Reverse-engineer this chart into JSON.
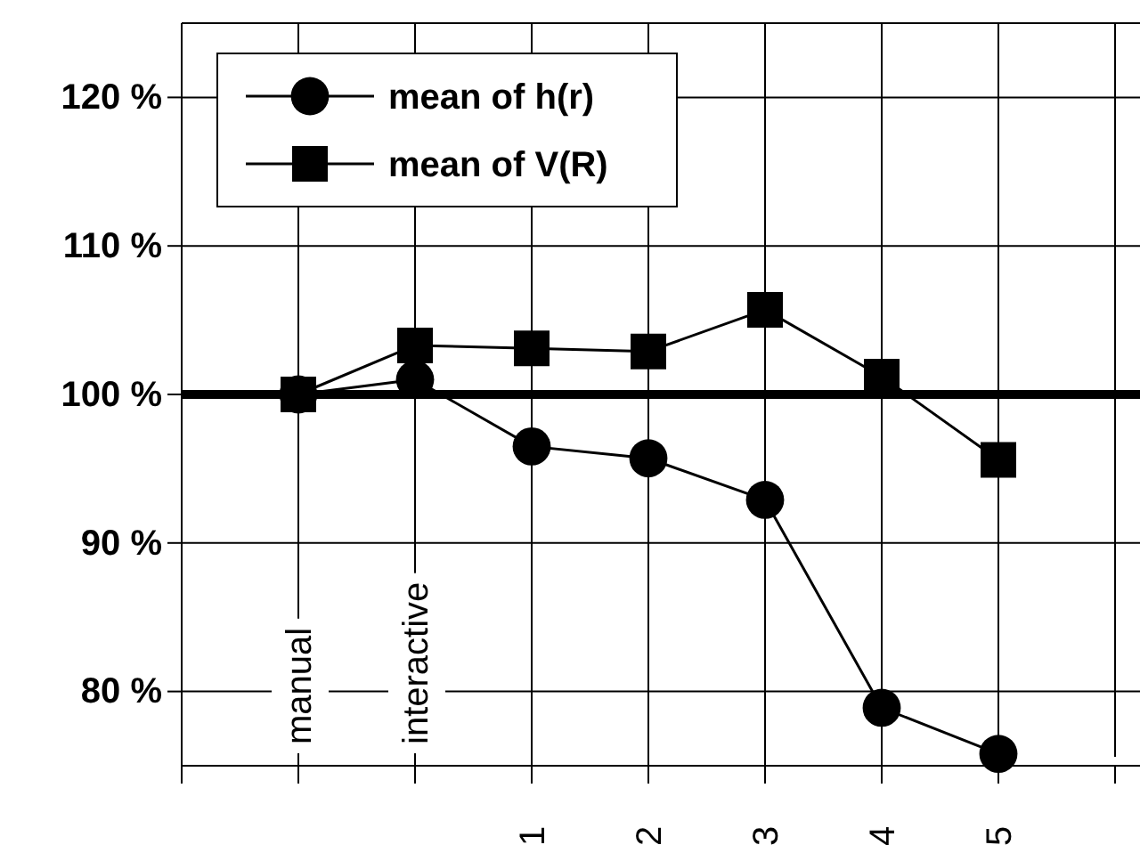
{
  "chart_data": {
    "type": "line",
    "categories": [
      "manual",
      "interactive",
      "1",
      "2",
      "3",
      "4",
      "5"
    ],
    "series": [
      {
        "name": "mean of h(r)",
        "color": "#000000",
        "marker": "circle",
        "values": [
          100,
          101,
          96.5,
          95.7,
          92.9,
          78.9,
          75.8
        ]
      },
      {
        "name": "mean of V(R)",
        "color": "#000000",
        "marker": "square",
        "values": [
          100,
          103.3,
          103.1,
          102.9,
          105.7,
          101.2,
          95.6
        ]
      }
    ],
    "ylim": [
      75,
      125
    ],
    "yticks": [
      {
        "value": 80,
        "label": "80 %"
      },
      {
        "value": 90,
        "label": "90 %"
      },
      {
        "value": 100,
        "label": "100 %"
      },
      {
        "value": 110,
        "label": "110 %"
      },
      {
        "value": 120,
        "label": "120 %"
      }
    ],
    "ref_lines": [
      {
        "axis": "y",
        "value": 100,
        "label": null,
        "color": "#000000"
      }
    ],
    "grid": true,
    "legend": "top left"
  }
}
